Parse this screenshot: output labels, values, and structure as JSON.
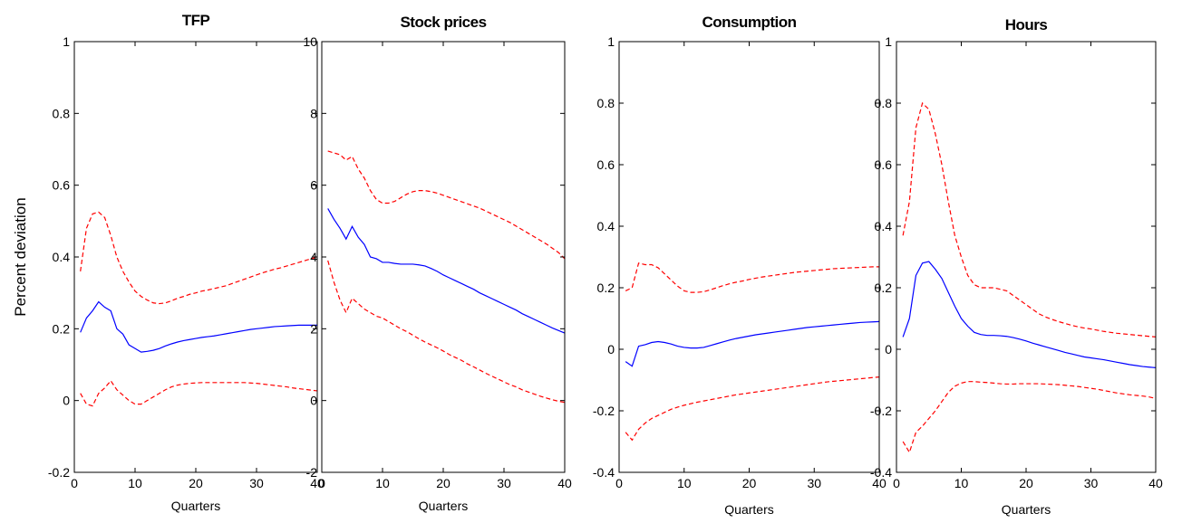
{
  "chart_data": [
    {
      "type": "line",
      "title": "TFP",
      "ylabel": "Percent deviation",
      "xlabel": "Quarters",
      "x": [
        1,
        2,
        3,
        4,
        5,
        6,
        7,
        8,
        9,
        10,
        11,
        12,
        13,
        14,
        15,
        16,
        17,
        18,
        19,
        20,
        21,
        22,
        23,
        24,
        25,
        26,
        27,
        28,
        29,
        30,
        31,
        32,
        33,
        34,
        35,
        36,
        37,
        38,
        39,
        40
      ],
      "series": [
        {
          "color": "#0000ff",
          "style": "solid",
          "values": [
            0.19,
            0.23,
            0.25,
            0.275,
            0.26,
            0.25,
            0.2,
            0.185,
            0.155,
            0.145,
            0.135,
            0.137,
            0.14,
            0.145,
            0.152,
            0.158,
            0.163,
            0.167,
            0.17,
            0.173,
            0.176,
            0.178,
            0.18,
            0.183,
            0.186,
            0.189,
            0.192,
            0.195,
            0.198,
            0.2,
            0.202,
            0.204,
            0.206,
            0.207,
            0.208,
            0.209,
            0.21,
            0.21,
            0.21,
            0.21
          ]
        },
        {
          "color": "#ff0000",
          "style": "dashed",
          "values": [
            0.36,
            0.48,
            0.52,
            0.525,
            0.51,
            0.46,
            0.4,
            0.36,
            0.33,
            0.305,
            0.29,
            0.28,
            0.272,
            0.27,
            0.272,
            0.278,
            0.285,
            0.29,
            0.296,
            0.3,
            0.305,
            0.308,
            0.312,
            0.316,
            0.32,
            0.326,
            0.332,
            0.338,
            0.344,
            0.35,
            0.356,
            0.361,
            0.366,
            0.37,
            0.375,
            0.38,
            0.385,
            0.39,
            0.395,
            0.4
          ]
        },
        {
          "color": "#ff0000",
          "style": "dashed",
          "values": [
            0.02,
            -0.01,
            -0.015,
            0.02,
            0.035,
            0.055,
            0.03,
            0.015,
            0,
            -0.01,
            -0.01,
            0,
            0.01,
            0.02,
            0.03,
            0.038,
            0.043,
            0.046,
            0.048,
            0.049,
            0.05,
            0.05,
            0.05,
            0.05,
            0.05,
            0.05,
            0.05,
            0.05,
            0.049,
            0.048,
            0.046,
            0.044,
            0.042,
            0.04,
            0.038,
            0.035,
            0.033,
            0.031,
            0.029,
            0.027
          ]
        }
      ],
      "xlim": [
        0,
        40
      ],
      "xticks": [
        0,
        10,
        20,
        30,
        40
      ],
      "ylim": [
        -0.2,
        1
      ],
      "yticks": [
        -0.2,
        0,
        0.2,
        0.4,
        0.6,
        0.8,
        1
      ],
      "grid": false
    },
    {
      "type": "line",
      "title": "Stock prices",
      "xlabel": "Quarters",
      "x": [
        1,
        2,
        3,
        4,
        5,
        6,
        7,
        8,
        9,
        10,
        11,
        12,
        13,
        14,
        15,
        16,
        17,
        18,
        19,
        20,
        21,
        22,
        23,
        24,
        25,
        26,
        27,
        28,
        29,
        30,
        31,
        32,
        33,
        34,
        35,
        36,
        37,
        38,
        39,
        40
      ],
      "series": [
        {
          "color": "#0000ff",
          "style": "solid",
          "values": [
            5.35,
            5.05,
            4.8,
            4.5,
            4.85,
            4.55,
            4.35,
            4.0,
            3.95,
            3.85,
            3.85,
            3.82,
            3.8,
            3.8,
            3.8,
            3.78,
            3.75,
            3.68,
            3.6,
            3.5,
            3.42,
            3.34,
            3.26,
            3.18,
            3.1,
            3.0,
            2.92,
            2.84,
            2.76,
            2.68,
            2.6,
            2.52,
            2.42,
            2.34,
            2.26,
            2.18,
            2.1,
            2.02,
            1.95,
            1.88
          ]
        },
        {
          "color": "#ff0000",
          "style": "dashed",
          "values": [
            6.95,
            6.9,
            6.85,
            6.7,
            6.8,
            6.45,
            6.2,
            5.85,
            5.6,
            5.5,
            5.5,
            5.55,
            5.65,
            5.75,
            5.82,
            5.85,
            5.85,
            5.82,
            5.78,
            5.72,
            5.66,
            5.6,
            5.54,
            5.48,
            5.42,
            5.36,
            5.28,
            5.2,
            5.12,
            5.04,
            4.96,
            4.86,
            4.76,
            4.66,
            4.56,
            4.46,
            4.36,
            4.24,
            4.12,
            3.95
          ]
        },
        {
          "color": "#ff0000",
          "style": "dashed",
          "values": [
            3.9,
            3.3,
            2.8,
            2.45,
            2.85,
            2.7,
            2.55,
            2.45,
            2.35,
            2.3,
            2.2,
            2.1,
            2.0,
            1.92,
            1.82,
            1.72,
            1.63,
            1.55,
            1.47,
            1.38,
            1.28,
            1.2,
            1.12,
            1.02,
            0.94,
            0.85,
            0.76,
            0.68,
            0.6,
            0.52,
            0.44,
            0.38,
            0.3,
            0.24,
            0.18,
            0.12,
            0.07,
            0.02,
            -0.02,
            -0.05
          ]
        }
      ],
      "xlim": [
        0,
        40
      ],
      "xticks": [
        0,
        10,
        20,
        30,
        40
      ],
      "ylim": [
        -2,
        10
      ],
      "yticks": [
        -2,
        0,
        2,
        4,
        6,
        8,
        10
      ],
      "grid": false
    },
    {
      "type": "line",
      "title": "Consumption",
      "xlabel": "Quarters",
      "x": [
        1,
        2,
        3,
        4,
        5,
        6,
        7,
        8,
        9,
        10,
        11,
        12,
        13,
        14,
        15,
        16,
        17,
        18,
        19,
        20,
        21,
        22,
        23,
        24,
        25,
        26,
        27,
        28,
        29,
        30,
        31,
        32,
        33,
        34,
        35,
        36,
        37,
        38,
        39,
        40
      ],
      "series": [
        {
          "color": "#0000ff",
          "style": "solid",
          "values": [
            -0.04,
            -0.055,
            0.01,
            0.015,
            0.022,
            0.025,
            0.022,
            0.017,
            0.01,
            0.006,
            0.004,
            0.004,
            0.006,
            0.012,
            0.018,
            0.024,
            0.03,
            0.035,
            0.039,
            0.043,
            0.047,
            0.05,
            0.053,
            0.056,
            0.059,
            0.062,
            0.065,
            0.068,
            0.071,
            0.073,
            0.075,
            0.077,
            0.079,
            0.081,
            0.083,
            0.085,
            0.087,
            0.088,
            0.089,
            0.09
          ]
        },
        {
          "color": "#ff0000",
          "style": "dashed",
          "values": [
            0.19,
            0.2,
            0.28,
            0.275,
            0.275,
            0.265,
            0.245,
            0.225,
            0.205,
            0.19,
            0.185,
            0.185,
            0.187,
            0.193,
            0.2,
            0.207,
            0.213,
            0.218,
            0.222,
            0.227,
            0.231,
            0.235,
            0.238,
            0.241,
            0.244,
            0.247,
            0.25,
            0.252,
            0.254,
            0.256,
            0.258,
            0.26,
            0.262,
            0.263,
            0.264,
            0.265,
            0.266,
            0.267,
            0.268,
            0.268
          ]
        },
        {
          "color": "#ff0000",
          "style": "dashed",
          "values": [
            -0.27,
            -0.295,
            -0.26,
            -0.24,
            -0.225,
            -0.215,
            -0.205,
            -0.195,
            -0.188,
            -0.182,
            -0.177,
            -0.172,
            -0.168,
            -0.164,
            -0.16,
            -0.156,
            -0.152,
            -0.148,
            -0.145,
            -0.142,
            -0.139,
            -0.136,
            -0.133,
            -0.13,
            -0.127,
            -0.124,
            -0.121,
            -0.118,
            -0.115,
            -0.112,
            -0.109,
            -0.106,
            -0.104,
            -0.102,
            -0.1,
            -0.098,
            -0.096,
            -0.094,
            -0.092,
            -0.09
          ]
        }
      ],
      "xlim": [
        0,
        40
      ],
      "xticks": [
        0,
        10,
        20,
        30,
        40
      ],
      "ylim": [
        -0.4,
        1
      ],
      "yticks": [
        -0.4,
        -0.2,
        0,
        0.2,
        0.4,
        0.6,
        0.8,
        1
      ],
      "grid": false
    },
    {
      "type": "line",
      "title": "Hours",
      "xlabel": "Quarters",
      "x": [
        1,
        2,
        3,
        4,
        5,
        6,
        7,
        8,
        9,
        10,
        11,
        12,
        13,
        14,
        15,
        16,
        17,
        18,
        19,
        20,
        21,
        22,
        23,
        24,
        25,
        26,
        27,
        28,
        29,
        30,
        31,
        32,
        33,
        34,
        35,
        36,
        37,
        38,
        39,
        40
      ],
      "series": [
        {
          "color": "#0000ff",
          "style": "solid",
          "values": [
            0.04,
            0.1,
            0.24,
            0.28,
            0.285,
            0.26,
            0.23,
            0.185,
            0.14,
            0.1,
            0.075,
            0.055,
            0.048,
            0.045,
            0.045,
            0.044,
            0.042,
            0.038,
            0.033,
            0.027,
            0.02,
            0.014,
            0.008,
            0.002,
            -0.004,
            -0.01,
            -0.015,
            -0.02,
            -0.025,
            -0.028,
            -0.031,
            -0.034,
            -0.038,
            -0.042,
            -0.046,
            -0.05,
            -0.053,
            -0.056,
            -0.058,
            -0.06
          ]
        },
        {
          "color": "#ff0000",
          "style": "dashed",
          "values": [
            0.37,
            0.48,
            0.72,
            0.8,
            0.78,
            0.7,
            0.6,
            0.48,
            0.37,
            0.3,
            0.24,
            0.21,
            0.2,
            0.2,
            0.2,
            0.195,
            0.19,
            0.175,
            0.16,
            0.145,
            0.13,
            0.115,
            0.105,
            0.097,
            0.09,
            0.084,
            0.078,
            0.073,
            0.069,
            0.066,
            0.062,
            0.058,
            0.055,
            0.052,
            0.05,
            0.048,
            0.046,
            0.044,
            0.042,
            0.04
          ]
        },
        {
          "color": "#ff0000",
          "style": "dashed",
          "values": [
            -0.3,
            -0.335,
            -0.27,
            -0.25,
            -0.225,
            -0.2,
            -0.17,
            -0.14,
            -0.12,
            -0.11,
            -0.105,
            -0.105,
            -0.107,
            -0.108,
            -0.11,
            -0.112,
            -0.113,
            -0.113,
            -0.112,
            -0.112,
            -0.112,
            -0.112,
            -0.113,
            -0.114,
            -0.115,
            -0.117,
            -0.119,
            -0.121,
            -0.124,
            -0.127,
            -0.13,
            -0.134,
            -0.138,
            -0.142,
            -0.145,
            -0.148,
            -0.15,
            -0.152,
            -0.155,
            -0.16
          ]
        }
      ],
      "xlim": [
        0,
        40
      ],
      "xticks": [
        0,
        10,
        20,
        30,
        40
      ],
      "ylim": [
        -0.4,
        1
      ],
      "yticks": [
        -0.4,
        -0.2,
        0,
        0.2,
        0.4,
        0.6,
        0.8,
        1
      ],
      "grid": false
    }
  ]
}
